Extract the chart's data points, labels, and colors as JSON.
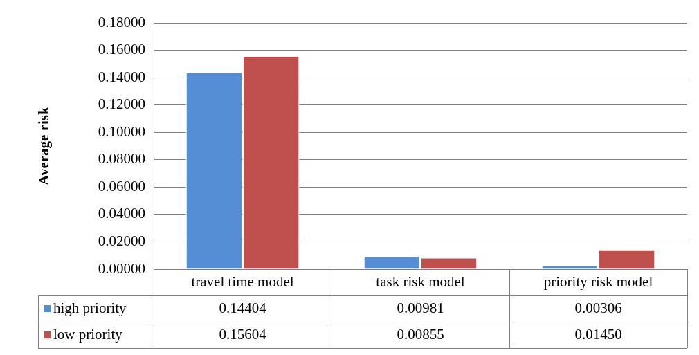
{
  "chart_data": {
    "type": "bar",
    "ylabel": "Average risk",
    "categories": [
      "travel time model",
      "task risk model",
      "priority risk model"
    ],
    "series": [
      {
        "name": "high priority",
        "color": "#558ed5",
        "values": [
          0.14404,
          0.00981,
          0.00306
        ],
        "value_labels": [
          "0.14404",
          "0.00981",
          "0.00306"
        ]
      },
      {
        "name": "low priority",
        "color": "#c0504d",
        "values": [
          0.15604,
          0.00855,
          0.0145
        ],
        "value_labels": [
          "0.15604",
          "0.00855",
          "0.01450"
        ]
      }
    ],
    "ylim": [
      0,
      0.18
    ],
    "yticks": [
      {
        "value": 0,
        "label": "0.00000"
      },
      {
        "value": 0.02,
        "label": "0.02000"
      },
      {
        "value": 0.04,
        "label": "0.04000"
      },
      {
        "value": 0.06,
        "label": "0.06000"
      },
      {
        "value": 0.08,
        "label": "0.08000"
      },
      {
        "value": 0.1,
        "label": "0.10000"
      },
      {
        "value": 0.12,
        "label": "0.12000"
      },
      {
        "value": 0.14,
        "label": "0.14000"
      },
      {
        "value": 0.16,
        "label": "0.16000"
      },
      {
        "value": 0.18,
        "label": "0.18000"
      }
    ],
    "grid": "y",
    "legend": "bottom"
  }
}
